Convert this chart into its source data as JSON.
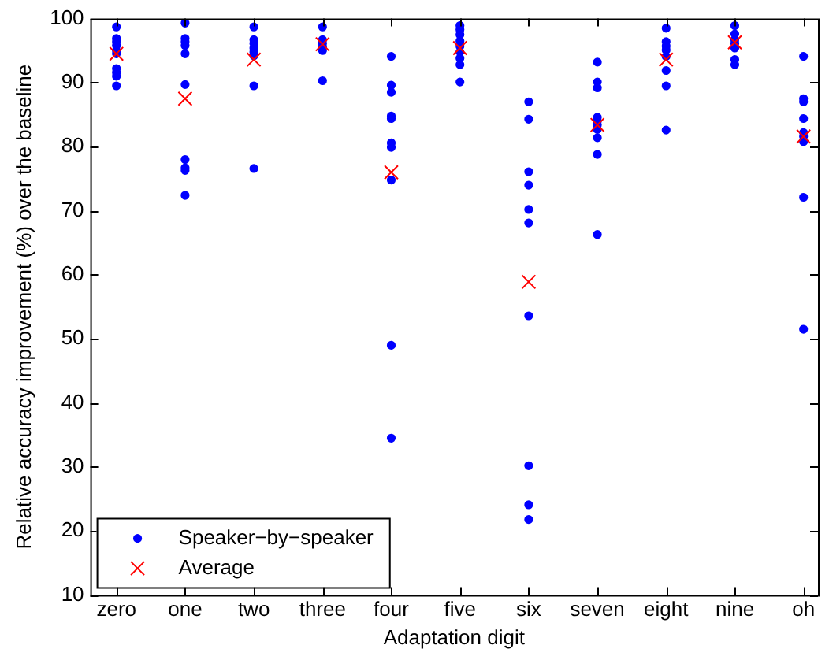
{
  "chart_data": {
    "type": "scatter",
    "xlabel": "Adaptation digit",
    "ylabel": "Relative accuracy improvement (%) over the baseline",
    "categories": [
      "zero",
      "one",
      "two",
      "three",
      "four",
      "five",
      "six",
      "seven",
      "eight",
      "nine",
      "oh"
    ],
    "ylim": [
      10,
      100
    ],
    "yticks": [
      10,
      20,
      30,
      40,
      50,
      60,
      70,
      80,
      90,
      100
    ],
    "grid": false,
    "legend": "bottom left",
    "series": [
      {
        "name": "Speaker−by−speaker",
        "color": "#0000ff",
        "marker": "circle",
        "x": [
          "zero",
          "zero",
          "zero",
          "zero",
          "zero",
          "zero",
          "zero",
          "zero",
          "zero",
          "zero",
          "one",
          "one",
          "one",
          "one",
          "one",
          "one",
          "one",
          "one",
          "one",
          "one",
          "two",
          "two",
          "two",
          "two",
          "two",
          "two",
          "two",
          "two",
          "three",
          "three",
          "three",
          "three",
          "three",
          "three",
          "four",
          "four",
          "four",
          "four",
          "four",
          "four",
          "four",
          "four",
          "four",
          "four",
          "five",
          "five",
          "five",
          "five",
          "five",
          "five",
          "five",
          "five",
          "five",
          "six",
          "six",
          "six",
          "six",
          "six",
          "six",
          "six",
          "six",
          "six",
          "six",
          "seven",
          "seven",
          "seven",
          "seven",
          "seven",
          "seven",
          "seven",
          "seven",
          "seven",
          "seven",
          "eight",
          "eight",
          "eight",
          "eight",
          "eight",
          "eight",
          "eight",
          "eight",
          "nine",
          "nine",
          "nine",
          "nine",
          "nine",
          "nine",
          "nine",
          "oh",
          "oh",
          "oh",
          "oh",
          "oh",
          "oh",
          "oh",
          "oh",
          "oh"
        ],
        "values": [
          98.7,
          96.9,
          96.4,
          95.8,
          95.0,
          94.5,
          92.2,
          91.6,
          91.0,
          89.5,
          99.3,
          96.9,
          96.4,
          95.8,
          94.5,
          89.7,
          78.0,
          76.7,
          76.3,
          72.4,
          98.7,
          96.7,
          96.1,
          95.4,
          94.8,
          94.2,
          89.5,
          76.6,
          98.7,
          96.7,
          96.1,
          95.6,
          95.0,
          90.3,
          94.1,
          89.6,
          88.5,
          84.8,
          84.4,
          80.6,
          79.9,
          74.8,
          49.0,
          34.5,
          98.9,
          98.3,
          97.5,
          96.5,
          95.7,
          94.8,
          93.8,
          92.8,
          90.1,
          87.0,
          84.3,
          76.1,
          74.0,
          70.2,
          68.1,
          53.6,
          30.2,
          24.1,
          21.8,
          93.2,
          90.1,
          89.2,
          84.6,
          84.0,
          83.4,
          82.7,
          81.4,
          78.8,
          66.3,
          98.5,
          96.4,
          95.7,
          95.1,
          94.1,
          91.9,
          89.5,
          82.6,
          98.9,
          97.6,
          96.7,
          96.1,
          95.4,
          93.6,
          92.8,
          94.1,
          87.5,
          87.0,
          84.4,
          82.2,
          81.6,
          80.8,
          72.1,
          51.5
        ]
      },
      {
        "name": "Average",
        "color": "#ff0000",
        "marker": "cross",
        "x": [
          "zero",
          "one",
          "two",
          "three",
          "four",
          "five",
          "six",
          "seven",
          "eight",
          "nine",
          "oh"
        ],
        "values": [
          94.5,
          87.5,
          93.6,
          96.0,
          76.0,
          95.4,
          58.9,
          83.4,
          93.6,
          96.3,
          81.6
        ]
      }
    ]
  }
}
